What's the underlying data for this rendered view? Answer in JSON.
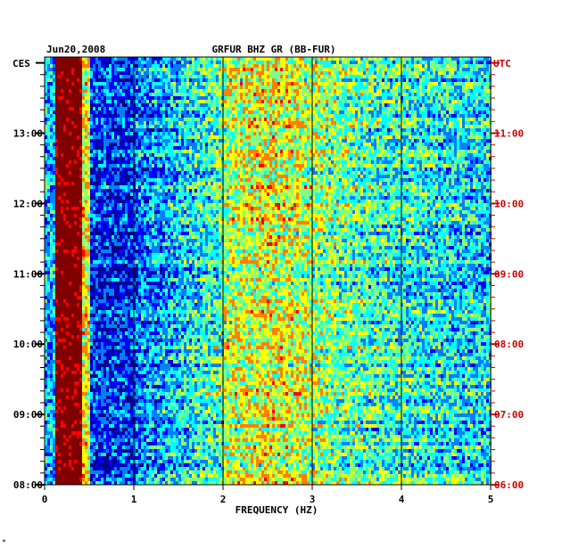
{
  "chart_data": {
    "type": "heatmap",
    "title": "GRFUR BHZ GR (BB-FUR)",
    "date_label": "Jun20,2008",
    "xlabel": "FREQUENCY (HZ)",
    "xlim": [
      0,
      5
    ],
    "x_ticks": [
      "0",
      "1",
      "2",
      "3",
      "4",
      "5"
    ],
    "left_axis_label": "CES",
    "right_axis_label": "UTC",
    "left_ticks": [
      "13:00",
      "12:00",
      "11:00",
      "10:00",
      "09:00",
      "08:00"
    ],
    "right_ticks": [
      "11:00",
      "10:00",
      "09:00",
      "08:00",
      "07:00",
      "06:00"
    ],
    "time_range_ces": [
      "08:00",
      "14:05"
    ],
    "time_range_utc": [
      "06:00",
      "12:05"
    ],
    "colors": {
      "background": "#ffffff",
      "axis": "#000000",
      "utc_text": "#cc0000",
      "colormap": [
        "#00008f",
        "#0000ff",
        "#0080ff",
        "#00ffff",
        "#80ff80",
        "#ffff00",
        "#ff8000",
        "#ff0000",
        "#800000"
      ]
    },
    "vertical_lines_hz": [
      1,
      2,
      3,
      4
    ],
    "bottom_mark": "*"
  }
}
